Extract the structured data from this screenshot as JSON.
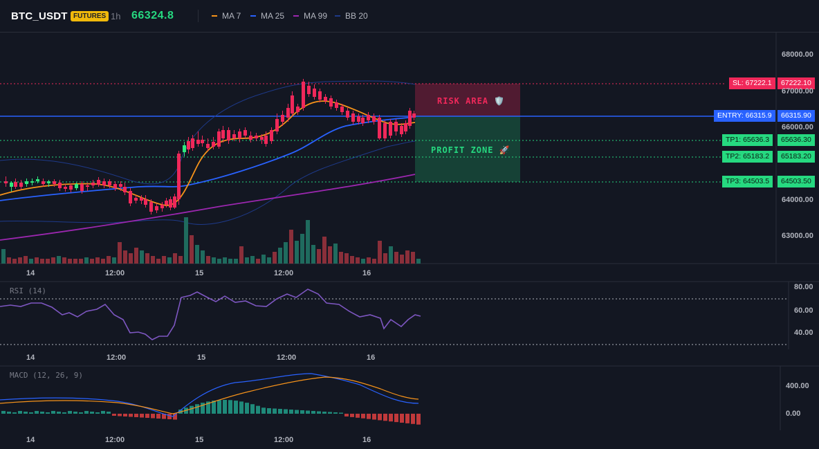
{
  "header": {
    "symbol": "BTC_USDT",
    "market_badge": "FUTURES",
    "timeframe": "1h",
    "last_price": "66324.8",
    "legend": [
      {
        "label": "MA 7",
        "color": "#f7931a"
      },
      {
        "label": "MA 25",
        "color": "#2962ff"
      },
      {
        "label": "MA 99",
        "color": "#9c27b0"
      },
      {
        "label": "BB 20",
        "color": "#1e3a8a"
      }
    ]
  },
  "main": {
    "y_ticks": [
      "68000.00",
      "67000.00",
      "66000.00",
      "64000.00",
      "63000.00"
    ],
    "x_ticks": [
      "14",
      "12:00",
      "15",
      "12:00",
      "16"
    ],
    "zones": {
      "risk_label": "RISK AREA 🛡️",
      "profit_label": "PROFIT ZONE 🚀"
    },
    "levels": {
      "sl_left": "SL: 67222.1",
      "sl_right": "67222.10",
      "entry_left": "ENTRY: 66315.9",
      "entry_right": "66315.90",
      "tp1_left": "TP1: 65636.3",
      "tp1_right": "65636.30",
      "tp2_left": "TP2: 65183.2",
      "tp2_right": "65183.20",
      "tp3_left": "TP3: 64503.5",
      "tp3_right": "64503.50"
    },
    "colors": {
      "up": "#26a69a",
      "up_bright": "#2ee87d",
      "down": "#ef5350",
      "down_bright": "#f0285a",
      "sl": "#f0285a",
      "entry": "#2962ff",
      "tp": "#26d980"
    }
  },
  "rsi": {
    "title": "RSI (14)",
    "y_ticks": [
      "80.00",
      "60.00",
      "40.00"
    ],
    "x_ticks": [
      "14",
      "12:00",
      "15",
      "12:00",
      "16"
    ]
  },
  "macd": {
    "title": "MACD (12, 26, 9)",
    "y_ticks": [
      "400.00",
      "0.00"
    ],
    "x_ticks": [
      "14",
      "12:00",
      "15",
      "12:00",
      "16"
    ]
  }
}
